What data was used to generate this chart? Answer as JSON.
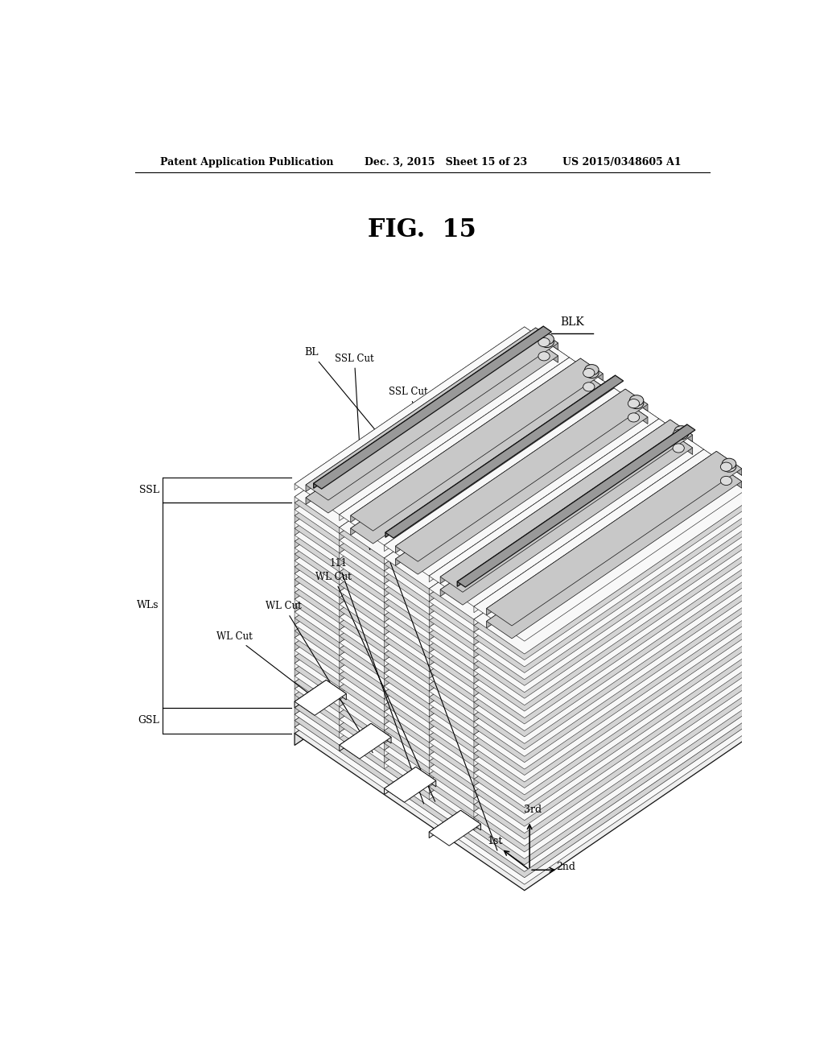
{
  "header_left": "Patent Application Publication",
  "header_mid": "Dec. 3, 2015   Sheet 15 of 23",
  "header_right": "US 2015/0348605 A1",
  "background_color": "#ffffff",
  "line_color": "#000000",
  "fig_title": "FIG.  15"
}
